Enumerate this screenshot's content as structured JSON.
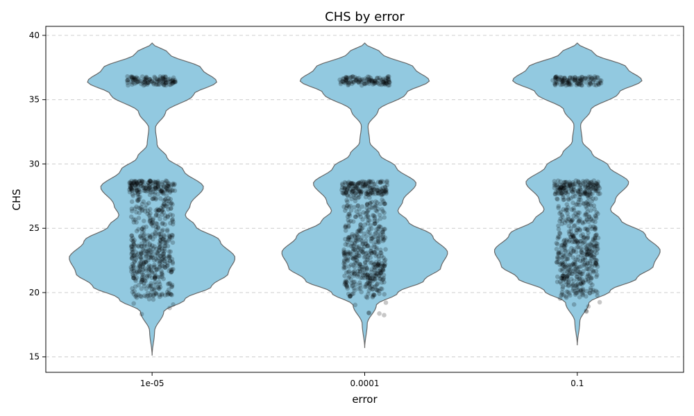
{
  "chart_data": {
    "type": "violin",
    "title": "CHS by error",
    "xlabel": "error",
    "ylabel": "CHS",
    "categories": [
      "1e-05",
      "0.0001",
      "0.1"
    ],
    "ylim": [
      13.8,
      40.7
    ],
    "yticks": [
      15,
      20,
      25,
      30,
      35,
      40
    ],
    "grid": "horizontal dashed",
    "violin_color": "#92c9e0",
    "outline_color": "#666666",
    "point_color": "#000000",
    "violin_range": [
      {
        "min": 15.1,
        "max": 39.4
      },
      {
        "min": 15.7,
        "max": 39.4
      },
      {
        "min": 15.9,
        "max": 39.4
      }
    ],
    "density_profile": [
      [
        15.1,
        0.0
      ],
      [
        17.0,
        0.03
      ],
      [
        18.5,
        0.14
      ],
      [
        19.5,
        0.4
      ],
      [
        20.5,
        0.72
      ],
      [
        21.5,
        0.92
      ],
      [
        22.7,
        1.0
      ],
      [
        24.0,
        0.82
      ],
      [
        25.2,
        0.52
      ],
      [
        26.0,
        0.4
      ],
      [
        26.8,
        0.46
      ],
      [
        28.2,
        0.62
      ],
      [
        29.5,
        0.38
      ],
      [
        30.5,
        0.18
      ],
      [
        31.5,
        0.06
      ],
      [
        32.8,
        0.04
      ],
      [
        34.0,
        0.16
      ],
      [
        35.4,
        0.5
      ],
      [
        36.4,
        0.78
      ],
      [
        37.4,
        0.6
      ],
      [
        38.6,
        0.2
      ],
      [
        39.4,
        0.0
      ]
    ],
    "point_clusters": [
      {
        "min": 36.1,
        "max": 36.8,
        "count": 110,
        "halfwidth": 0.26
      },
      {
        "min": 27.6,
        "max": 28.7,
        "count": 150,
        "halfwidth": 0.24
      },
      {
        "min": 24.5,
        "max": 27.6,
        "count": 130,
        "halfwidth": 0.22
      },
      {
        "min": 21.0,
        "max": 24.5,
        "count": 260,
        "halfwidth": 0.22
      },
      {
        "min": 19.6,
        "max": 21.0,
        "count": 70,
        "halfwidth": 0.21
      },
      {
        "min": 18.2,
        "max": 19.6,
        "count": 6,
        "halfwidth": 0.25
      }
    ]
  }
}
